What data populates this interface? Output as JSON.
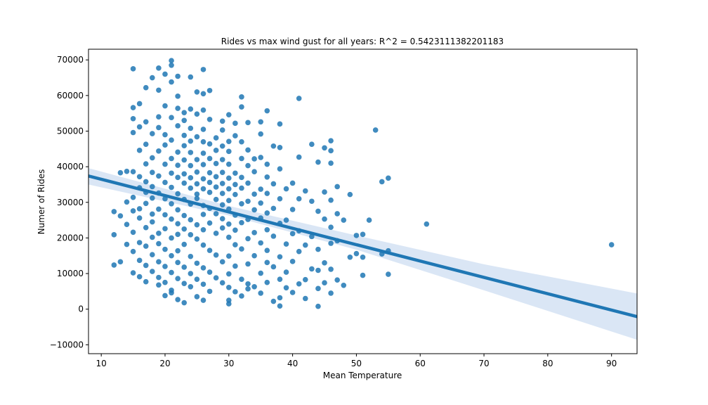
{
  "chart_data": {
    "type": "scatter",
    "title": "Rides vs max wind gust for all years: R^2 = 0.5423111382201183",
    "xlabel": "Mean Temperature",
    "ylabel": "Numer of Rides",
    "xlim": [
      8,
      94
    ],
    "ylim": [
      -12500,
      73000
    ],
    "xticks": [
      10,
      20,
      30,
      40,
      50,
      60,
      70,
      80,
      90
    ],
    "yticks": [
      -10000,
      0,
      10000,
      20000,
      30000,
      40000,
      50000,
      60000,
      70000
    ],
    "xtick_labels": [
      "10",
      "20",
      "30",
      "40",
      "50",
      "60",
      "70",
      "80",
      "90"
    ],
    "ytick_labels": [
      "−10000",
      "0",
      "10000",
      "20000",
      "30000",
      "40000",
      "50000",
      "60000",
      "70000"
    ],
    "grid": false,
    "colors": {
      "points": "#1f77b4",
      "line": "#1f77b4",
      "band": "#aec7e8"
    },
    "regression": {
      "line": [
        [
          8,
          37400
        ],
        [
          94,
          -2100
        ]
      ],
      "ci_upper": [
        [
          8,
          39600
        ],
        [
          30,
          29000
        ],
        [
          50,
          20700
        ],
        [
          70,
          12600
        ],
        [
          94,
          4400
        ]
      ],
      "ci_lower": [
        [
          8,
          35000
        ],
        [
          30,
          26300
        ],
        [
          50,
          16700
        ],
        [
          70,
          5300
        ],
        [
          94,
          -8600
        ]
      ]
    },
    "points": [
      [
        15,
        67500
      ],
      [
        21,
        69800
      ],
      [
        21,
        68500
      ],
      [
        19,
        67700
      ],
      [
        26,
        67300
      ],
      [
        18,
        65000
      ],
      [
        22,
        65400
      ],
      [
        20,
        66000
      ],
      [
        24,
        65200
      ],
      [
        21,
        63800
      ],
      [
        17,
        62200
      ],
      [
        19,
        61500
      ],
      [
        25,
        61000
      ],
      [
        27,
        61400
      ],
      [
        26,
        60500
      ],
      [
        22,
        59800
      ],
      [
        32,
        59600
      ],
      [
        41,
        59200
      ],
      [
        16,
        57700
      ],
      [
        15,
        56600
      ],
      [
        20,
        57100
      ],
      [
        22,
        56400
      ],
      [
        24,
        56200
      ],
      [
        26,
        55900
      ],
      [
        32,
        56800
      ],
      [
        36,
        55700
      ],
      [
        23,
        55200
      ],
      [
        25,
        54800
      ],
      [
        30,
        54600
      ],
      [
        19,
        54000
      ],
      [
        15,
        53500
      ],
      [
        17,
        52600
      ],
      [
        21,
        53800
      ],
      [
        23,
        53000
      ],
      [
        27,
        53300
      ],
      [
        29,
        52800
      ],
      [
        31,
        52200
      ],
      [
        33,
        52400
      ],
      [
        35,
        52600
      ],
      [
        38,
        52000
      ],
      [
        16,
        51200
      ],
      [
        19,
        51000
      ],
      [
        22,
        51500
      ],
      [
        24,
        50800
      ],
      [
        26,
        50500
      ],
      [
        29,
        50300
      ],
      [
        53,
        50300
      ],
      [
        15,
        49600
      ],
      [
        18,
        49300
      ],
      [
        20,
        49000
      ],
      [
        23,
        48800
      ],
      [
        25,
        48400
      ],
      [
        28,
        48100
      ],
      [
        31,
        48700
      ],
      [
        35,
        49200
      ],
      [
        21,
        47500
      ],
      [
        24,
        47200
      ],
      [
        26,
        47000
      ],
      [
        30,
        47100
      ],
      [
        32,
        47000
      ],
      [
        46,
        47300
      ],
      [
        17,
        46300
      ],
      [
        20,
        46100
      ],
      [
        23,
        45900
      ],
      [
        27,
        46400
      ],
      [
        29,
        45800
      ],
      [
        37,
        45800
      ],
      [
        38,
        45400
      ],
      [
        43,
        46300
      ],
      [
        45,
        45300
      ],
      [
        16,
        44600
      ],
      [
        19,
        44400
      ],
      [
        22,
        44100
      ],
      [
        24,
        44000
      ],
      [
        26,
        43800
      ],
      [
        28,
        44600
      ],
      [
        30,
        44300
      ],
      [
        33,
        44700
      ],
      [
        46,
        44500
      ],
      [
        34,
        42200
      ],
      [
        18,
        42500
      ],
      [
        21,
        42300
      ],
      [
        23,
        41900
      ],
      [
        25,
        42000
      ],
      [
        27,
        42300
      ],
      [
        29,
        42000
      ],
      [
        32,
        42300
      ],
      [
        35,
        42600
      ],
      [
        41,
        42700
      ],
      [
        44,
        41300
      ],
      [
        17,
        40800
      ],
      [
        20,
        40700
      ],
      [
        22,
        40400
      ],
      [
        24,
        40300
      ],
      [
        26,
        40600
      ],
      [
        28,
        40900
      ],
      [
        30,
        40700
      ],
      [
        33,
        40300
      ],
      [
        36,
        40700
      ],
      [
        46,
        41000
      ],
      [
        15,
        38600
      ],
      [
        18,
        38400
      ],
      [
        21,
        38200
      ],
      [
        23,
        38000
      ],
      [
        25,
        38500
      ],
      [
        27,
        38300
      ],
      [
        29,
        38400
      ],
      [
        31,
        38200
      ],
      [
        34,
        38600
      ],
      [
        38,
        39400
      ],
      [
        13,
        38300
      ],
      [
        14,
        38700
      ],
      [
        16,
        37200
      ],
      [
        19,
        37400
      ],
      [
        22,
        37000
      ],
      [
        24,
        36900
      ],
      [
        26,
        36600
      ],
      [
        28,
        37200
      ],
      [
        30,
        36800
      ],
      [
        32,
        37000
      ],
      [
        36,
        37100
      ],
      [
        55,
        36800
      ],
      [
        54,
        35800
      ],
      [
        17,
        35800
      ],
      [
        20,
        35600
      ],
      [
        23,
        35400
      ],
      [
        25,
        35200
      ],
      [
        27,
        35600
      ],
      [
        29,
        35300
      ],
      [
        31,
        35000
      ],
      [
        33,
        35400
      ],
      [
        37,
        35200
      ],
      [
        40,
        35400
      ],
      [
        16,
        34100
      ],
      [
        18,
        34400
      ],
      [
        21,
        34200
      ],
      [
        24,
        34000
      ],
      [
        26,
        33800
      ],
      [
        28,
        34300
      ],
      [
        30,
        33800
      ],
      [
        32,
        34000
      ],
      [
        35,
        33700
      ],
      [
        39,
        33800
      ],
      [
        47,
        34400
      ],
      [
        42,
        33200
      ],
      [
        17,
        32800
      ],
      [
        19,
        32600
      ],
      [
        22,
        32400
      ],
      [
        25,
        32300
      ],
      [
        27,
        32800
      ],
      [
        29,
        32500
      ],
      [
        31,
        32200
      ],
      [
        34,
        32300
      ],
      [
        36,
        32500
      ],
      [
        45,
        32900
      ],
      [
        49,
        32200
      ],
      [
        15,
        31400
      ],
      [
        18,
        31200
      ],
      [
        20,
        31000
      ],
      [
        23,
        30800
      ],
      [
        25,
        31100
      ],
      [
        28,
        30800
      ],
      [
        30,
        30500
      ],
      [
        33,
        30300
      ],
      [
        38,
        31000
      ],
      [
        41,
        31000
      ],
      [
        14,
        30100
      ],
      [
        17,
        29700
      ],
      [
        21,
        29600
      ],
      [
        24,
        29500
      ],
      [
        26,
        29100
      ],
      [
        29,
        29300
      ],
      [
        32,
        29600
      ],
      [
        35,
        29800
      ],
      [
        43,
        30300
      ],
      [
        46,
        30600
      ],
      [
        16,
        28200
      ],
      [
        19,
        28100
      ],
      [
        22,
        27900
      ],
      [
        27,
        28300
      ],
      [
        30,
        28100
      ],
      [
        34,
        27900
      ],
      [
        37,
        28300
      ],
      [
        40,
        28000
      ],
      [
        12,
        27400
      ],
      [
        15,
        27600
      ],
      [
        18,
        26700
      ],
      [
        20,
        26500
      ],
      [
        23,
        26300
      ],
      [
        26,
        26600
      ],
      [
        28,
        26800
      ],
      [
        31,
        26400
      ],
      [
        36,
        27000
      ],
      [
        44,
        27500
      ],
      [
        47,
        26800
      ],
      [
        13,
        26200
      ],
      [
        16,
        25600
      ],
      [
        21,
        25300
      ],
      [
        24,
        25100
      ],
      [
        29,
        25400
      ],
      [
        33,
        25200
      ],
      [
        35,
        25600
      ],
      [
        39,
        25000
      ],
      [
        45,
        25300
      ],
      [
        48,
        25000
      ],
      [
        52,
        25000
      ],
      [
        18,
        24500
      ],
      [
        22,
        24000
      ],
      [
        25,
        23700
      ],
      [
        27,
        24200
      ],
      [
        30,
        23900
      ],
      [
        32,
        24300
      ],
      [
        38,
        24100
      ],
      [
        61,
        23900
      ],
      [
        14,
        23800
      ],
      [
        17,
        22900
      ],
      [
        20,
        22600
      ],
      [
        23,
        22500
      ],
      [
        26,
        22300
      ],
      [
        29,
        22800
      ],
      [
        31,
        22200
      ],
      [
        36,
        22300
      ],
      [
        41,
        22000
      ],
      [
        46,
        23000
      ],
      [
        15,
        21600
      ],
      [
        19,
        21300
      ],
      [
        22,
        21000
      ],
      [
        24,
        20900
      ],
      [
        28,
        21300
      ],
      [
        34,
        21500
      ],
      [
        40,
        21200
      ],
      [
        12,
        20900
      ],
      [
        18,
        20200
      ],
      [
        21,
        20000
      ],
      [
        25,
        19700
      ],
      [
        30,
        20200
      ],
      [
        33,
        19800
      ],
      [
        37,
        20500
      ],
      [
        43,
        20400
      ],
      [
        47,
        19200
      ],
      [
        50,
        20700
      ],
      [
        51,
        21000
      ],
      [
        14,
        18200
      ],
      [
        16,
        18700
      ],
      [
        19,
        18400
      ],
      [
        23,
        18200
      ],
      [
        26,
        18000
      ],
      [
        31,
        18100
      ],
      [
        35,
        18600
      ],
      [
        39,
        18300
      ],
      [
        42,
        18000
      ],
      [
        46,
        18500
      ],
      [
        15,
        16200
      ],
      [
        17,
        17700
      ],
      [
        20,
        16800
      ],
      [
        22,
        16400
      ],
      [
        27,
        16500
      ],
      [
        32,
        16900
      ],
      [
        36,
        16500
      ],
      [
        41,
        16200
      ],
      [
        44,
        16800
      ],
      [
        50,
        15600
      ],
      [
        55,
        16400
      ],
      [
        54,
        15500
      ],
      [
        18,
        15300
      ],
      [
        21,
        15000
      ],
      [
        24,
        14800
      ],
      [
        28,
        15200
      ],
      [
        30,
        14900
      ],
      [
        34,
        15000
      ],
      [
        38,
        14700
      ],
      [
        49,
        14600
      ],
      [
        51,
        14600
      ],
      [
        90,
        18100
      ],
      [
        13,
        13300
      ],
      [
        16,
        13700
      ],
      [
        19,
        13300
      ],
      [
        22,
        13100
      ],
      [
        25,
        12900
      ],
      [
        29,
        13300
      ],
      [
        33,
        12700
      ],
      [
        36,
        13100
      ],
      [
        40,
        13400
      ],
      [
        45,
        13000
      ],
      [
        12,
        12400
      ],
      [
        17,
        12300
      ],
      [
        20,
        12000
      ],
      [
        23,
        11800
      ],
      [
        26,
        11600
      ],
      [
        31,
        12100
      ],
      [
        37,
        11900
      ],
      [
        43,
        11300
      ],
      [
        46,
        11200
      ],
      [
        15,
        10200
      ],
      [
        18,
        10600
      ],
      [
        21,
        10300
      ],
      [
        24,
        10000
      ],
      [
        27,
        10400
      ],
      [
        30,
        9900
      ],
      [
        35,
        10100
      ],
      [
        39,
        10400
      ],
      [
        44,
        10900
      ],
      [
        55,
        9800
      ],
      [
        51,
        9500
      ],
      [
        16,
        9100
      ],
      [
        19,
        8900
      ],
      [
        22,
        8600
      ],
      [
        25,
        8400
      ],
      [
        28,
        8800
      ],
      [
        32,
        8400
      ],
      [
        38,
        8400
      ],
      [
        42,
        8300
      ],
      [
        47,
        8200
      ],
      [
        17,
        7700
      ],
      [
        20,
        7500
      ],
      [
        23,
        7200
      ],
      [
        26,
        7000
      ],
      [
        29,
        7400
      ],
      [
        33,
        7100
      ],
      [
        36,
        7500
      ],
      [
        41,
        7100
      ],
      [
        45,
        7400
      ],
      [
        48,
        6700
      ],
      [
        19,
        6800
      ],
      [
        24,
        6300
      ],
      [
        30,
        6100
      ],
      [
        34,
        6300
      ],
      [
        39,
        6000
      ],
      [
        44,
        5800
      ],
      [
        21,
        5300
      ],
      [
        27,
        5000
      ],
      [
        31,
        4900
      ],
      [
        35,
        4500
      ],
      [
        40,
        4700
      ],
      [
        46,
        4500
      ],
      [
        20,
        3800
      ],
      [
        25,
        3500
      ],
      [
        32,
        3700
      ],
      [
        38,
        3200
      ],
      [
        42,
        3000
      ],
      [
        22,
        2700
      ],
      [
        26,
        2500
      ],
      [
        30,
        2500
      ],
      [
        37,
        2200
      ],
      [
        23,
        1800
      ],
      [
        30,
        1500
      ],
      [
        38,
        900
      ],
      [
        44,
        800
      ],
      [
        21,
        4600
      ],
      [
        33,
        5700
      ]
    ]
  }
}
